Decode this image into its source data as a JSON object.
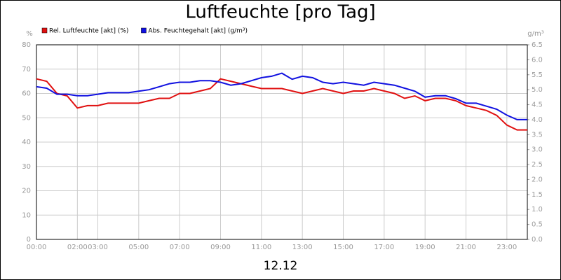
{
  "chart_data": {
    "type": "line",
    "title": "Luftfeuchte [pro Tag]",
    "xlabel": "12.12",
    "ylabel": "%",
    "y2label": "g/m³",
    "x": [
      0,
      0.5,
      1,
      1.5,
      2,
      2.5,
      3,
      3.5,
      4,
      4.5,
      5,
      5.5,
      6,
      6.5,
      7,
      7.5,
      8,
      8.5,
      9,
      9.5,
      10,
      10.5,
      11,
      11.5,
      12,
      12.5,
      13,
      13.5,
      14,
      14.5,
      15,
      15.5,
      16,
      16.5,
      17,
      17.5,
      18,
      18.5,
      19,
      19.5,
      20,
      20.5,
      21,
      21.5,
      22,
      22.5,
      23,
      23.5,
      24
    ],
    "series": [
      {
        "name": "Rel. Luftfeuchte [akt] (%)",
        "color": "#e01010",
        "axis": "y",
        "values": [
          66,
          65,
          60,
          59,
          54,
          55,
          55,
          56,
          56,
          56,
          56,
          57,
          58,
          58,
          60,
          60,
          61,
          62,
          66,
          65,
          64,
          63,
          62,
          62,
          62,
          61,
          60,
          61,
          62,
          61,
          60,
          61,
          61,
          62,
          61,
          60,
          58,
          59,
          57,
          58,
          58,
          57,
          55,
          54,
          53,
          51,
          47,
          45,
          45
        ]
      },
      {
        "name": "Abs. Feuchtegehalt [akt] (g/m³)",
        "color": "#1010e0",
        "axis": "y2",
        "values": [
          5.1,
          5.05,
          4.85,
          4.85,
          4.8,
          4.8,
          4.85,
          4.9,
          4.9,
          4.9,
          4.95,
          5.0,
          5.1,
          5.2,
          5.25,
          5.25,
          5.3,
          5.3,
          5.25,
          5.15,
          5.2,
          5.3,
          5.4,
          5.45,
          5.55,
          5.35,
          5.45,
          5.4,
          5.25,
          5.2,
          5.25,
          5.2,
          5.15,
          5.25,
          5.2,
          5.15,
          5.05,
          4.95,
          4.75,
          4.8,
          4.8,
          4.7,
          4.55,
          4.55,
          4.45,
          4.35,
          4.15,
          4.0,
          4.0
        ]
      }
    ],
    "xlim": [
      0,
      24
    ],
    "xticks": [
      {
        "value": 0,
        "label": "00:00"
      },
      {
        "value": 2,
        "label": "02:00"
      },
      {
        "value": 3,
        "label": "03:00"
      },
      {
        "value": 5,
        "label": "05:00"
      },
      {
        "value": 7,
        "label": "07:00"
      },
      {
        "value": 9,
        "label": "09:00"
      },
      {
        "value": 11,
        "label": "11:00"
      },
      {
        "value": 13,
        "label": "13:00"
      },
      {
        "value": 15,
        "label": "15:00"
      },
      {
        "value": 17,
        "label": "17:00"
      },
      {
        "value": 19,
        "label": "19:00"
      },
      {
        "value": 21,
        "label": "21:00"
      },
      {
        "value": 23,
        "label": "23:00"
      }
    ],
    "ylim": [
      0,
      80
    ],
    "yticks": [
      0,
      10,
      20,
      30,
      40,
      50,
      60,
      70,
      80
    ],
    "y2lim": [
      0,
      6.5
    ],
    "y2ticks": [
      {
        "value": 0,
        "label": "0.0"
      },
      0.5,
      {
        "value": 1,
        "label": "1.0"
      },
      1.5,
      {
        "value": 2,
        "label": "2.0"
      },
      2.5,
      {
        "value": 3,
        "label": "3.0"
      },
      3.5,
      {
        "value": 4,
        "label": "4.0"
      },
      4.5,
      {
        "value": 5,
        "label": "5.0"
      },
      5.5,
      {
        "value": 6,
        "label": "6.0"
      },
      6.5
    ],
    "grid": true
  }
}
